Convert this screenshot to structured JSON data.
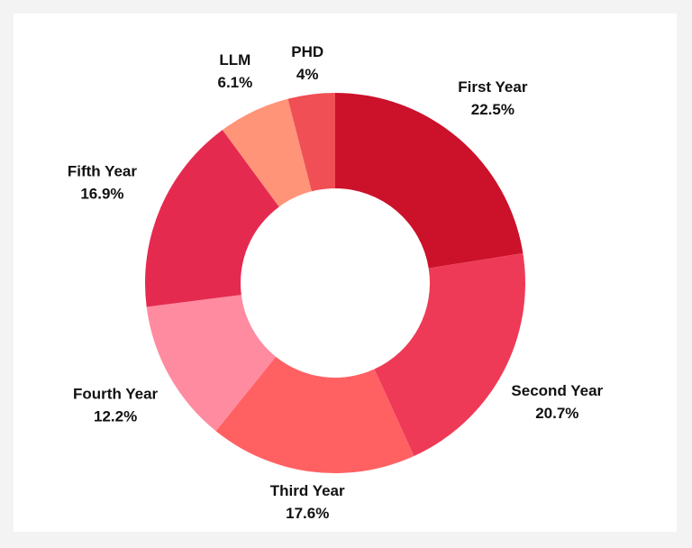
{
  "chart_data": {
    "type": "donut",
    "categories": [
      "First Year",
      "Second Year",
      "Third Year",
      "Fourth Year",
      "Fifth Year",
      "LLM",
      "PHD"
    ],
    "values": [
      22.5,
      20.7,
      17.6,
      12.2,
      16.9,
      6.1,
      4
    ],
    "value_labels": [
      "22.5%",
      "20.7%",
      "17.6%",
      "12.2%",
      "16.9%",
      "6.1%",
      "4%"
    ],
    "colors": [
      "#cc112b",
      "#ee3a57",
      "#ff6163",
      "#ff8ba0",
      "#e52a50",
      "#ff9478",
      "#f04f55"
    ]
  }
}
